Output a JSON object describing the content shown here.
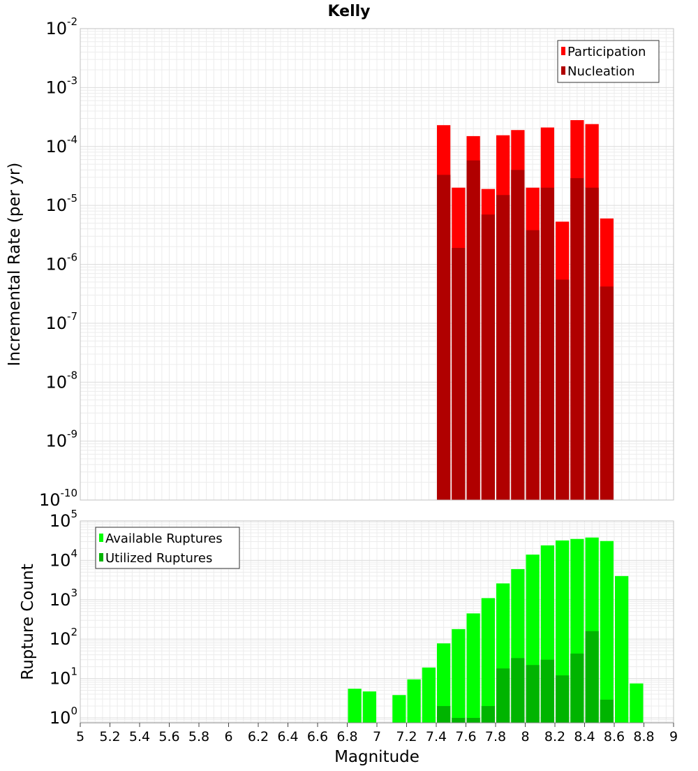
{
  "title": "Kelly",
  "chart_data": [
    {
      "type": "bar",
      "name": "incremental-rate",
      "ylabel": "Incremental Rate (per yr)",
      "xlabel": "",
      "yscale": "log",
      "ylim": [
        1e-10,
        0.01
      ],
      "ytick_labels": [
        {
          "base": "10",
          "exp": "-2",
          "value": 0.01
        },
        {
          "base": "10",
          "exp": "-3",
          "value": 0.001
        },
        {
          "base": "10",
          "exp": "-4",
          "value": 0.0001
        },
        {
          "base": "10",
          "exp": "-5",
          "value": 1e-05
        },
        {
          "base": "10",
          "exp": "-6",
          "value": 1e-06
        },
        {
          "base": "10",
          "exp": "-7",
          "value": 1e-07
        },
        {
          "base": "10",
          "exp": "-8",
          "value": 1e-08
        },
        {
          "base": "10",
          "exp": "-9",
          "value": 1e-09
        },
        {
          "base": "10",
          "exp": "-10",
          "value": 1e-10
        }
      ],
      "x": [
        7.45,
        7.55,
        7.65,
        7.75,
        7.85,
        7.95,
        8.05,
        8.15,
        8.25,
        8.35,
        8.45,
        8.55
      ],
      "series": [
        {
          "name": "Participation",
          "color": "#ff0000",
          "values": [
            0.00023,
            2e-05,
            0.00015,
            1.9e-05,
            0.000155,
            0.00019,
            2e-05,
            0.00021,
            5.3e-06,
            0.00028,
            0.00024,
            6e-06
          ]
        },
        {
          "name": "Nucleation",
          "color": "#b00000",
          "values": [
            3.3e-05,
            1.9e-06,
            5.8e-05,
            7e-06,
            1.5e-05,
            4e-05,
            3.8e-06,
            2e-05,
            5.5e-07,
            2.9e-05,
            2e-05,
            4.2e-07
          ]
        }
      ],
      "legend": "top-right"
    },
    {
      "type": "bar",
      "name": "rupture-count",
      "ylabel": "Rupture Count",
      "xlabel": "Magnitude",
      "yscale": "log",
      "ylim": [
        0.75,
        100000.0
      ],
      "ytick_labels": [
        {
          "base": "10",
          "exp": "5",
          "value": 100000.0
        },
        {
          "base": "10",
          "exp": "4",
          "value": 10000.0
        },
        {
          "base": "10",
          "exp": "3",
          "value": 1000.0
        },
        {
          "base": "10",
          "exp": "2",
          "value": 100.0
        },
        {
          "base": "10",
          "exp": "1",
          "value": 10.0
        },
        {
          "base": "10",
          "exp": "0",
          "value": 1
        }
      ],
      "xlim": [
        5,
        9
      ],
      "xtick_labels": [
        "5",
        "5.2",
        "5.4",
        "5.6",
        "5.8",
        "6",
        "6.2",
        "6.4",
        "6.6",
        "6.8",
        "7",
        "7.2",
        "7.4",
        "7.6",
        "7.8",
        "8",
        "8.2",
        "8.4",
        "8.6",
        "8.8",
        "9"
      ],
      "x": [
        6.85,
        6.95,
        7.15,
        7.25,
        7.35,
        7.45,
        7.55,
        7.65,
        7.75,
        7.85,
        7.95,
        8.05,
        8.15,
        8.25,
        8.35,
        8.45,
        8.55,
        8.65,
        8.75
      ],
      "series": [
        {
          "name": "Available Ruptures",
          "color": "#00ff00",
          "values": [
            5.5,
            4.7,
            3.8,
            9.5,
            19,
            78,
            180,
            450,
            1100,
            2600,
            6000,
            14000,
            24000,
            32000,
            35000,
            38000,
            31000,
            4000,
            7.5
          ]
        },
        {
          "name": "Utilized Ruptures",
          "color": "#00b400",
          "values": [
            null,
            null,
            null,
            null,
            null,
            2,
            1,
            1,
            2,
            18,
            33,
            22,
            30,
            12,
            43,
            160,
            2.9,
            null,
            null
          ]
        }
      ],
      "legend": "top-left"
    }
  ]
}
